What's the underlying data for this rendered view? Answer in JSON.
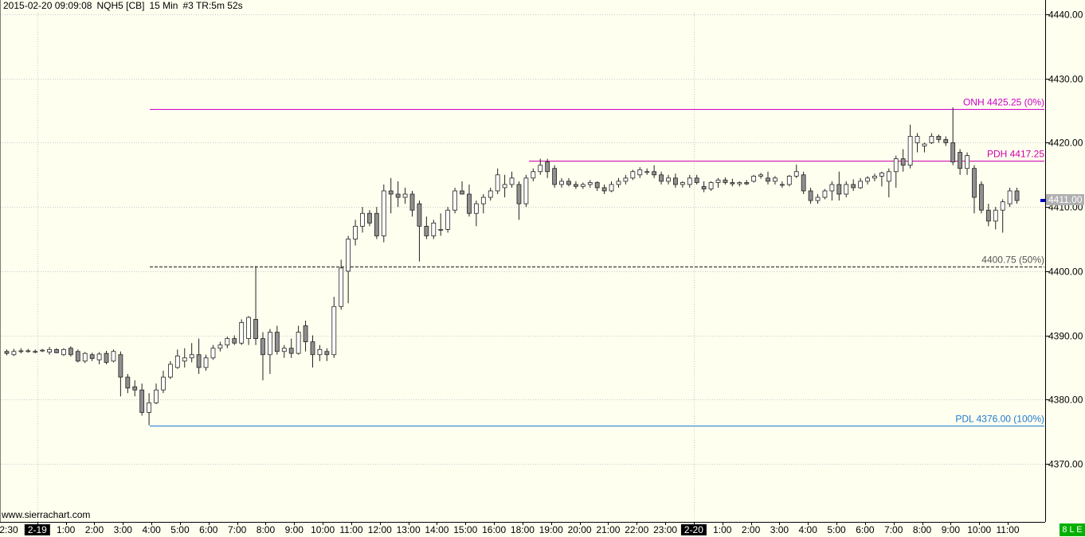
{
  "header": {
    "datetime": "2015-02-20 09:09:08",
    "symbol": "NQH5 [CB]",
    "timeframe": "15 Min",
    "info": "#3 TR:5m 52s"
  },
  "footer": {
    "watermark": "www.sierrachart.com"
  },
  "status_badge": "8 L E",
  "colors": {
    "background": "#fffff0",
    "grid": "#c8c8c8",
    "onh": "#cc00cc",
    "pdh": "#cc00aa",
    "mid": "#555555",
    "pdl": "#1e78d0",
    "up_candle": "#ffffff",
    "down_candle": "#909090",
    "price_marker": "#0000cc"
  },
  "chart_data": {
    "type": "candlestick",
    "ylim": [
      4362,
      4442
    ],
    "y_ticks": [
      "4370.00",
      "4380.00",
      "4390.00",
      "4400.00",
      "4410.00",
      "4420.00",
      "4430.00",
      "4440.00"
    ],
    "x_ticks": [
      "2:30",
      "2-19",
      "1:00",
      "2:00",
      "3:00",
      "4:00",
      "5:00",
      "6:00",
      "7:00",
      "8:00",
      "9:00",
      "10:00",
      "11:00",
      "12:00",
      "13:00",
      "14:00",
      "15:00",
      "16:00",
      "18:00",
      "19:00",
      "20:00",
      "21:00",
      "22:00",
      "23:00",
      "2-20",
      "1:00",
      "2:00",
      "3:00",
      "4:00",
      "5:00",
      "6:00",
      "7:00",
      "8:00",
      "9:00",
      "10:00",
      "11:00"
    ],
    "date_markers": [
      "2-19",
      "2-20"
    ],
    "levels": [
      {
        "name": "ONH",
        "value": "4425.25",
        "pct": "(0%)",
        "price": 4425.25,
        "style": "solid",
        "color_key": "onh"
      },
      {
        "name": "PDH",
        "value": "4417.25",
        "pct": "",
        "price": 4417.25,
        "style": "solid",
        "color_key": "pdh"
      },
      {
        "name": "",
        "value": "4400.75",
        "pct": "(50%)",
        "price": 4400.75,
        "style": "dashed",
        "color_key": "mid"
      },
      {
        "name": "PDL",
        "value": "4376.00",
        "pct": "(100%)",
        "price": 4376.0,
        "style": "solid",
        "color_key": "pdl"
      }
    ],
    "last_price": "4411.00",
    "candles": [
      {
        "o": 4387.5,
        "h": 4387.8,
        "l": 4386.9,
        "c": 4387.2
      },
      {
        "o": 4387.0,
        "h": 4387.9,
        "l": 4386.8,
        "c": 4387.5
      },
      {
        "o": 4387.5,
        "h": 4388.0,
        "l": 4387.2,
        "c": 4387.6
      },
      {
        "o": 4387.6,
        "h": 4387.9,
        "l": 4387.3,
        "c": 4387.6
      },
      {
        "o": 4387.5,
        "h": 4387.8,
        "l": 4387.2,
        "c": 4387.5
      },
      {
        "o": 4387.6,
        "h": 4387.9,
        "l": 4387.4,
        "c": 4387.7
      },
      {
        "o": 4387.4,
        "h": 4388.2,
        "l": 4387.0,
        "c": 4387.8
      },
      {
        "o": 4387.8,
        "h": 4388.0,
        "l": 4387.2,
        "c": 4387.3
      },
      {
        "o": 4387.0,
        "h": 4388.0,
        "l": 4386.8,
        "c": 4387.8
      },
      {
        "o": 4388.0,
        "h": 4388.3,
        "l": 4386.7,
        "c": 4387.0
      },
      {
        "o": 4387.5,
        "h": 4387.8,
        "l": 4385.8,
        "c": 4386.0
      },
      {
        "o": 4386.0,
        "h": 4387.4,
        "l": 4385.7,
        "c": 4387.2
      },
      {
        "o": 4387.0,
        "h": 4387.3,
        "l": 4386.0,
        "c": 4386.4
      },
      {
        "o": 4386.2,
        "h": 4387.4,
        "l": 4385.5,
        "c": 4387.1
      },
      {
        "o": 4387.2,
        "h": 4387.6,
        "l": 4385.5,
        "c": 4385.8
      },
      {
        "o": 4386.0,
        "h": 4387.8,
        "l": 4385.8,
        "c": 4387.5
      },
      {
        "o": 4387.0,
        "h": 4387.5,
        "l": 4380.5,
        "c": 4383.5
      },
      {
        "o": 4383.5,
        "h": 4384.0,
        "l": 4381.0,
        "c": 4381.8
      },
      {
        "o": 4382.0,
        "h": 4383.0,
        "l": 4380.5,
        "c": 4381.5
      },
      {
        "o": 4381.5,
        "h": 4382.5,
        "l": 4377.5,
        "c": 4378.0
      },
      {
        "o": 4378.0,
        "h": 4381.0,
        "l": 4376.0,
        "c": 4379.5
      },
      {
        "o": 4379.5,
        "h": 4382.5,
        "l": 4379.3,
        "c": 4381.5
      },
      {
        "o": 4381.5,
        "h": 4384.5,
        "l": 4381.0,
        "c": 4383.5
      },
      {
        "o": 4383.5,
        "h": 4386.0,
        "l": 4383.2,
        "c": 4385.5
      },
      {
        "o": 4385.0,
        "h": 4387.8,
        "l": 4384.8,
        "c": 4386.8
      },
      {
        "o": 4386.0,
        "h": 4388.0,
        "l": 4385.0,
        "c": 4386.5
      },
      {
        "o": 4386.5,
        "h": 4388.8,
        "l": 4385.8,
        "c": 4387.0
      },
      {
        "o": 4387.0,
        "h": 4389.5,
        "l": 4384.0,
        "c": 4385.0
      },
      {
        "o": 4385.0,
        "h": 4387.0,
        "l": 4384.5,
        "c": 4386.5
      },
      {
        "o": 4386.5,
        "h": 4388.5,
        "l": 4386.2,
        "c": 4388.0
      },
      {
        "o": 4388.0,
        "h": 4389.0,
        "l": 4387.5,
        "c": 4388.5
      },
      {
        "o": 4388.5,
        "h": 4389.8,
        "l": 4388.0,
        "c": 4389.5
      },
      {
        "o": 4389.5,
        "h": 4390.0,
        "l": 4388.5,
        "c": 4388.8
      },
      {
        "o": 4388.8,
        "h": 4392.5,
        "l": 4388.5,
        "c": 4392.0
      },
      {
        "o": 4389.5,
        "h": 4393.0,
        "l": 4388.5,
        "c": 4392.8
      },
      {
        "o": 4392.5,
        "h": 4400.8,
        "l": 4388.5,
        "c": 4389.5
      },
      {
        "o": 4389.5,
        "h": 4390.5,
        "l": 4383.0,
        "c": 4387.0
      },
      {
        "o": 4387.0,
        "h": 4391.0,
        "l": 4384.0,
        "c": 4390.5
      },
      {
        "o": 4390.5,
        "h": 4391.5,
        "l": 4387.0,
        "c": 4387.5
      },
      {
        "o": 4387.5,
        "h": 4388.5,
        "l": 4386.5,
        "c": 4388.0
      },
      {
        "o": 4388.0,
        "h": 4389.5,
        "l": 4386.5,
        "c": 4387.2
      },
      {
        "o": 4387.2,
        "h": 4391.5,
        "l": 4387.0,
        "c": 4390.5
      },
      {
        "o": 4391.5,
        "h": 4392.3,
        "l": 4387.5,
        "c": 4389.0
      },
      {
        "o": 4389.0,
        "h": 4390.0,
        "l": 4385.0,
        "c": 4387.0
      },
      {
        "o": 4387.0,
        "h": 4388.5,
        "l": 4386.0,
        "c": 4387.8
      },
      {
        "o": 4387.5,
        "h": 4388.0,
        "l": 4386.0,
        "c": 4387.0
      },
      {
        "o": 4387.0,
        "h": 4396.0,
        "l": 4386.5,
        "c": 4394.5
      },
      {
        "o": 4394.5,
        "h": 4401.8,
        "l": 4394.0,
        "c": 4400.5
      },
      {
        "o": 4400.0,
        "h": 4405.5,
        "l": 4395.0,
        "c": 4405.0
      },
      {
        "o": 4405.0,
        "h": 4408.0,
        "l": 4404.0,
        "c": 4407.0
      },
      {
        "o": 4407.0,
        "h": 4410.0,
        "l": 4406.0,
        "c": 4409.0
      },
      {
        "o": 4409.0,
        "h": 4409.5,
        "l": 4407.0,
        "c": 4407.5
      },
      {
        "o": 4409.0,
        "h": 4410.0,
        "l": 4405.0,
        "c": 4405.5
      },
      {
        "o": 4405.5,
        "h": 4413.5,
        "l": 4404.5,
        "c": 4412.5
      },
      {
        "o": 4412.5,
        "h": 4414.5,
        "l": 4409.0,
        "c": 4412.0
      },
      {
        "o": 4412.0,
        "h": 4414.0,
        "l": 4410.0,
        "c": 4411.5
      },
      {
        "o": 4411.5,
        "h": 4413.0,
        "l": 4410.5,
        "c": 4412.0
      },
      {
        "o": 4412.0,
        "h": 4412.5,
        "l": 4408.5,
        "c": 4409.5
      },
      {
        "o": 4410.5,
        "h": 4411.0,
        "l": 4401.5,
        "c": 4407.0
      },
      {
        "o": 4407.0,
        "h": 4408.5,
        "l": 4405.0,
        "c": 4405.5
      },
      {
        "o": 4405.5,
        "h": 4408.0,
        "l": 4405.0,
        "c": 4407.5
      },
      {
        "o": 4406.5,
        "h": 4409.0,
        "l": 4405.5,
        "c": 4406.5
      },
      {
        "o": 4406.5,
        "h": 4410.0,
        "l": 4406.0,
        "c": 4409.5
      },
      {
        "o": 4409.5,
        "h": 4413.0,
        "l": 4409.0,
        "c": 4412.5
      },
      {
        "o": 4412.5,
        "h": 4414.0,
        "l": 4412.0,
        "c": 4412.0
      },
      {
        "o": 4412.0,
        "h": 4413.5,
        "l": 4408.5,
        "c": 4409.0
      },
      {
        "o": 4409.0,
        "h": 4411.0,
        "l": 4407.0,
        "c": 4410.5
      },
      {
        "o": 4410.5,
        "h": 4412.0,
        "l": 4409.0,
        "c": 4411.5
      },
      {
        "o": 4411.5,
        "h": 4413.0,
        "l": 4411.0,
        "c": 4412.5
      },
      {
        "o": 4412.5,
        "h": 4416.0,
        "l": 4412.0,
        "c": 4415.0
      },
      {
        "o": 4413.0,
        "h": 4415.0,
        "l": 4411.5,
        "c": 4413.5
      },
      {
        "o": 4413.5,
        "h": 4415.5,
        "l": 4413.0,
        "c": 4414.5
      },
      {
        "o": 4413.5,
        "h": 4414.0,
        "l": 4408.0,
        "c": 4410.5
      },
      {
        "o": 4410.5,
        "h": 4415.0,
        "l": 4410.0,
        "c": 4414.5
      },
      {
        "o": 4414.5,
        "h": 4416.0,
        "l": 4414.0,
        "c": 4415.5
      },
      {
        "o": 4415.5,
        "h": 4417.5,
        "l": 4415.0,
        "c": 4416.5
      },
      {
        "o": 4417.0,
        "h": 4417.5,
        "l": 4414.5,
        "c": 4415.5
      },
      {
        "o": 4416.0,
        "h": 4416.5,
        "l": 4413.0,
        "c": 4413.5
      },
      {
        "o": 4413.5,
        "h": 4414.5,
        "l": 4413.0,
        "c": 4414.0
      },
      {
        "o": 4414.0,
        "h": 4414.5,
        "l": 4413.2,
        "c": 4413.5
      },
      {
        "o": 4413.5,
        "h": 4414.0,
        "l": 4412.8,
        "c": 4413.2
      },
      {
        "o": 4413.2,
        "h": 4413.8,
        "l": 4412.8,
        "c": 4413.5
      },
      {
        "o": 4413.5,
        "h": 4414.2,
        "l": 4413.0,
        "c": 4413.8
      },
      {
        "o": 4413.8,
        "h": 4414.0,
        "l": 4412.5,
        "c": 4413.0
      },
      {
        "o": 4413.0,
        "h": 4413.5,
        "l": 4412.0,
        "c": 4412.5
      },
      {
        "o": 4412.5,
        "h": 4414.0,
        "l": 4412.3,
        "c": 4413.5
      },
      {
        "o": 4413.5,
        "h": 4414.5,
        "l": 4413.0,
        "c": 4414.0
      },
      {
        "o": 4414.0,
        "h": 4415.0,
        "l": 4413.5,
        "c": 4414.5
      },
      {
        "o": 4414.5,
        "h": 4415.8,
        "l": 4414.2,
        "c": 4415.5
      },
      {
        "o": 4415.0,
        "h": 4416.2,
        "l": 4414.5,
        "c": 4415.8
      },
      {
        "o": 4415.5,
        "h": 4416.0,
        "l": 4415.0,
        "c": 4415.5
      },
      {
        "o": 4415.5,
        "h": 4416.5,
        "l": 4414.5,
        "c": 4415.0
      },
      {
        "o": 4415.0,
        "h": 4415.5,
        "l": 4413.5,
        "c": 4414.0
      },
      {
        "o": 4414.0,
        "h": 4415.0,
        "l": 4413.5,
        "c": 4414.5
      },
      {
        "o": 4414.5,
        "h": 4415.2,
        "l": 4413.0,
        "c": 4413.5
      },
      {
        "o": 4413.5,
        "h": 4414.0,
        "l": 4413.0,
        "c": 4413.8
      },
      {
        "o": 4413.5,
        "h": 4415.0,
        "l": 4413.0,
        "c": 4414.5
      },
      {
        "o": 4414.5,
        "h": 4415.0,
        "l": 4413.5,
        "c": 4413.8
      },
      {
        "o": 4413.2,
        "h": 4414.0,
        "l": 4412.3,
        "c": 4412.8
      },
      {
        "o": 4412.8,
        "h": 4414.0,
        "l": 4412.5,
        "c": 4413.8
      },
      {
        "o": 4413.8,
        "h": 4414.5,
        "l": 4413.0,
        "c": 4414.2
      },
      {
        "o": 4414.2,
        "h": 4414.6,
        "l": 4413.5,
        "c": 4413.8
      },
      {
        "o": 4413.8,
        "h": 4414.4,
        "l": 4413.2,
        "c": 4413.6
      },
      {
        "o": 4413.6,
        "h": 4414.0,
        "l": 4413.2,
        "c": 4413.8
      },
      {
        "o": 4413.8,
        "h": 4414.2,
        "l": 4413.4,
        "c": 4413.6
      },
      {
        "o": 4414.0,
        "h": 4415.0,
        "l": 4413.8,
        "c": 4414.8
      },
      {
        "o": 4414.8,
        "h": 4415.3,
        "l": 4414.4,
        "c": 4415.0
      },
      {
        "o": 4414.5,
        "h": 4415.5,
        "l": 4413.5,
        "c": 4414.0
      },
      {
        "o": 4414.0,
        "h": 4414.8,
        "l": 4413.5,
        "c": 4414.5
      },
      {
        "o": 4413.5,
        "h": 4414.0,
        "l": 4413.0,
        "c": 4413.5
      },
      {
        "o": 4413.5,
        "h": 4415.0,
        "l": 4413.2,
        "c": 4414.8
      },
      {
        "o": 4414.8,
        "h": 4416.6,
        "l": 4414.5,
        "c": 4415.5
      },
      {
        "o": 4415.0,
        "h": 4415.5,
        "l": 4412.0,
        "c": 4412.5
      },
      {
        "o": 4412.5,
        "h": 4413.0,
        "l": 4410.5,
        "c": 4411.0
      },
      {
        "o": 4411.0,
        "h": 4412.0,
        "l": 4410.5,
        "c": 4411.5
      },
      {
        "o": 4411.5,
        "h": 4412.8,
        "l": 4411.2,
        "c": 4412.5
      },
      {
        "o": 4412.5,
        "h": 4414.0,
        "l": 4411.0,
        "c": 4413.5
      },
      {
        "o": 4413.5,
        "h": 4415.5,
        "l": 4411.0,
        "c": 4412.0
      },
      {
        "o": 4412.0,
        "h": 4414.0,
        "l": 4411.5,
        "c": 4413.5
      },
      {
        "o": 4413.5,
        "h": 4414.3,
        "l": 4412.5,
        "c": 4413.0
      },
      {
        "o": 4413.0,
        "h": 4414.5,
        "l": 4412.8,
        "c": 4414.0
      },
      {
        "o": 4414.0,
        "h": 4414.8,
        "l": 4413.5,
        "c": 4414.5
      },
      {
        "o": 4414.5,
        "h": 4415.2,
        "l": 4414.0,
        "c": 4414.8
      },
      {
        "o": 4414.8,
        "h": 4415.5,
        "l": 4413.2,
        "c": 4415.3
      },
      {
        "o": 4414.0,
        "h": 4416.0,
        "l": 4411.5,
        "c": 4415.5
      },
      {
        "o": 4415.5,
        "h": 4418.0,
        "l": 4413.0,
        "c": 4417.5
      },
      {
        "o": 4417.5,
        "h": 4419.0,
        "l": 4415.5,
        "c": 4416.5
      },
      {
        "o": 4416.5,
        "h": 4422.8,
        "l": 4416.0,
        "c": 4421.0
      },
      {
        "o": 4420.0,
        "h": 4421.5,
        "l": 4418.5,
        "c": 4421.0
      },
      {
        "o": 4419.5,
        "h": 4420.0,
        "l": 4418.5,
        "c": 4419.8
      },
      {
        "o": 4420.0,
        "h": 4421.5,
        "l": 4419.8,
        "c": 4421.0
      },
      {
        "o": 4421.0,
        "h": 4421.3,
        "l": 4420.0,
        "c": 4420.5
      },
      {
        "o": 4420.5,
        "h": 4421.0,
        "l": 4419.5,
        "c": 4420.0
      },
      {
        "o": 4420.0,
        "h": 4425.5,
        "l": 4416.5,
        "c": 4417.0
      },
      {
        "o": 4418.5,
        "h": 4419.0,
        "l": 4415.0,
        "c": 4416.0
      },
      {
        "o": 4416.0,
        "h": 4418.5,
        "l": 4415.0,
        "c": 4418.0
      },
      {
        "o": 4416.0,
        "h": 4416.5,
        "l": 4409.0,
        "c": 4411.5
      },
      {
        "o": 4413.5,
        "h": 4414.0,
        "l": 4409.0,
        "c": 4409.5
      },
      {
        "o": 4409.5,
        "h": 4410.5,
        "l": 4407.0,
        "c": 4407.8
      },
      {
        "o": 4407.8,
        "h": 4410.0,
        "l": 4406.5,
        "c": 4409.5
      },
      {
        "o": 4409.5,
        "h": 4411.2,
        "l": 4406.0,
        "c": 4410.8
      },
      {
        "o": 4410.5,
        "h": 4413.0,
        "l": 4410.0,
        "c": 4412.5
      },
      {
        "o": 4412.5,
        "h": 4413.0,
        "l": 4410.5,
        "c": 4411.0
      }
    ]
  }
}
